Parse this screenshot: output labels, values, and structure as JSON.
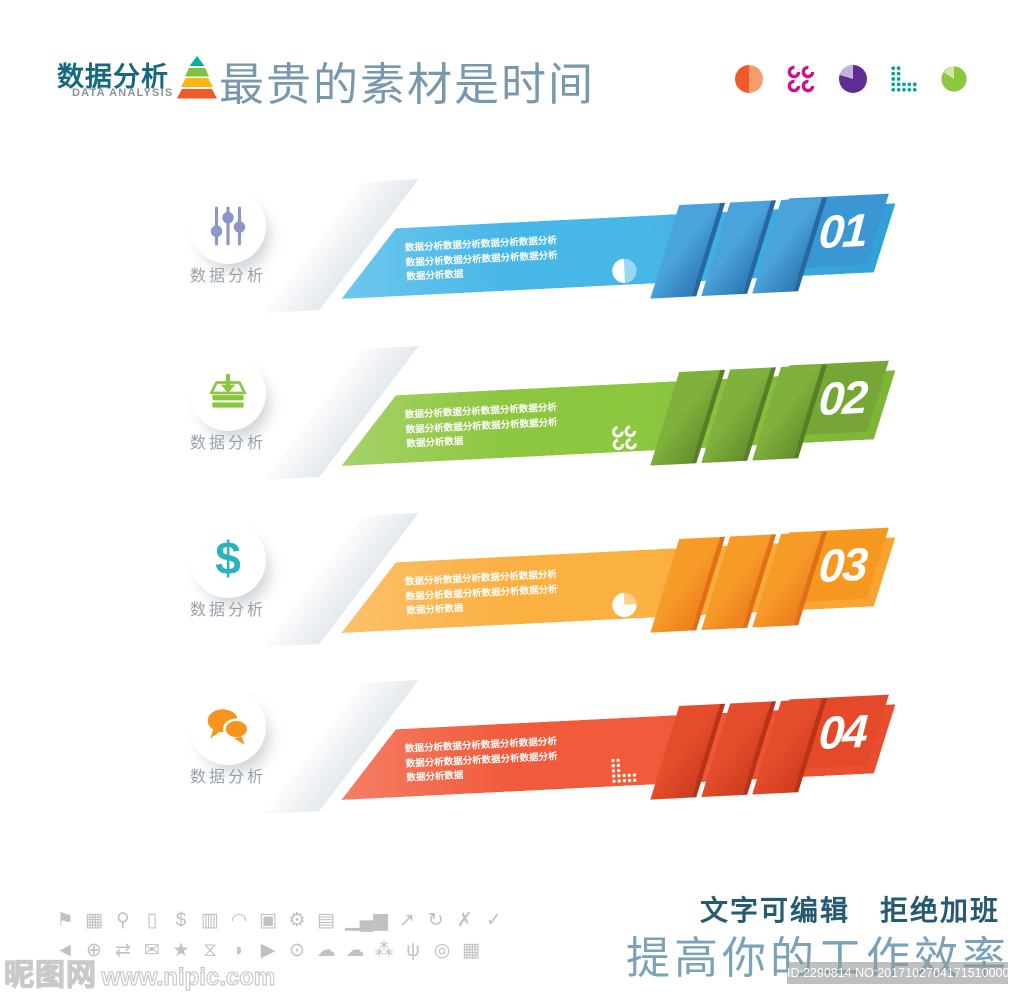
{
  "header": {
    "logo_cn": "数据分析",
    "logo_en": "DATA ANALYSIS",
    "title": "最贵的素材是时间",
    "pyramid_colors": [
      "#00b0a0",
      "#7fc241",
      "#fdb515",
      "#f05a28"
    ],
    "mini_charts": [
      {
        "name": "half-pie-orange",
        "c1": "#f05a28",
        "c2": "#f59c6b"
      },
      {
        "name": "rings-magenta",
        "c1": "#c6168d",
        "c2": "#c6168d"
      },
      {
        "name": "pie-purple",
        "c1": "#5f2d91",
        "c2": "#c4b3d8"
      },
      {
        "name": "dot-grid-teal",
        "c1": "#00a398",
        "c2": "#00a398"
      },
      {
        "name": "pie-green",
        "c1": "#8dc63f",
        "c2": "#d3e6a4"
      }
    ]
  },
  "rows": [
    {
      "number": "01",
      "circle_label": "数据分析",
      "icon": "sliders-icon",
      "mini_icon": "half-pie-icon",
      "text_line1": "数据分析数据分析数据分析数据分析",
      "text_line2": "数据分析数据分析数据分析数据分析",
      "text_line3": "数据分析数据",
      "colors": {
        "band": "#47b7e8",
        "band_dark": "#2f9fd8",
        "ribbon": "#4aa3da",
        "ribbon_dark": "#2d78b4",
        "ribbon_edge": "#26699f",
        "box": "#3b97d3",
        "acc": "#8b96c9"
      }
    },
    {
      "number": "02",
      "circle_label": "数据分析",
      "icon": "archive-download-icon",
      "mini_icon": "rings-icon",
      "text_line1": "数据分析数据分析数据分析数据分析",
      "text_line2": "数据分析数据分析数据分析数据分析",
      "text_line3": "数据分析数据",
      "colors": {
        "band": "#8dc63f",
        "band_dark": "#7db338",
        "ribbon": "#7fb13c",
        "ribbon_dark": "#648f2d",
        "ribbon_edge": "#587f27",
        "box": "#76a635",
        "acc": "#8cc63f"
      }
    },
    {
      "number": "03",
      "circle_label": "数据分析",
      "icon": "dollar-icon",
      "mini_icon": "pie-quarter-icon",
      "text_line1": "数据分析数据分析数据分析数据分析",
      "text_line2": "数据分析数据分析数据分析数据分析",
      "text_line3": "数据分析数据",
      "colors": {
        "band": "#fbb042",
        "band_dark": "#f9a22f",
        "ribbon": "#f79b28",
        "ribbon_dark": "#ee7d1e",
        "ribbon_edge": "#e06f15",
        "box": "#f79820",
        "acc": "#2ab3bc"
      }
    },
    {
      "number": "04",
      "circle_label": "数据分析",
      "icon": "chat-bubbles-icon",
      "mini_icon": "dot-grid-icon",
      "text_line1": "数据分析数据分析数据分析数据分析",
      "text_line2": "数据分析数据分析数据分析数据分析",
      "text_line3": "数据分析数据",
      "colors": {
        "band": "#f15b3b",
        "band_dark": "#e84c2c",
        "ribbon": "#e54c2b",
        "ribbon_dark": "#cc3d1f",
        "ribbon_edge": "#b93317",
        "box": "#e44a2a",
        "acc": "#f7941e"
      }
    }
  ],
  "footer": {
    "note": "文字可编辑　拒绝加班",
    "slogan": "提高你的工作效率",
    "site_cn": "昵图网",
    "site_url": "www.nipic.com",
    "id_text": "ID:2290814 NO:20171027041715100000",
    "icon_row1": [
      {
        "name": "flag-icon",
        "glyph": "⚑"
      },
      {
        "name": "calendar-icon",
        "glyph": "▦"
      },
      {
        "name": "search-icon",
        "glyph": "⚲"
      },
      {
        "name": "phone-icon",
        "glyph": "▯"
      },
      {
        "name": "dollar-icon",
        "glyph": "$"
      },
      {
        "name": "trash-icon",
        "glyph": "▥"
      },
      {
        "name": "wifi-icon",
        "glyph": "◠"
      },
      {
        "name": "lock-icon",
        "glyph": "▣"
      },
      {
        "name": "gears-icon",
        "glyph": "⚙"
      },
      {
        "name": "toolbox-icon",
        "glyph": "▤"
      },
      {
        "name": "bar-chart-icon",
        "glyph": "▁▄▆"
      },
      {
        "name": "trend-arrow-icon",
        "glyph": "↗"
      },
      {
        "name": "refresh-icon",
        "glyph": "↻"
      },
      {
        "name": "close-icon",
        "glyph": "✗"
      },
      {
        "name": "check-icon",
        "glyph": "✓"
      }
    ],
    "icon_row2": [
      {
        "name": "megaphone-icon",
        "glyph": "◄"
      },
      {
        "name": "globe-icon",
        "glyph": "⊕"
      },
      {
        "name": "swap-arrows-icon",
        "glyph": "⇄"
      },
      {
        "name": "mail-icon",
        "glyph": "✉"
      },
      {
        "name": "star-icon",
        "glyph": "★"
      },
      {
        "name": "hourglass-icon",
        "glyph": "⧖"
      },
      {
        "name": "chat-icon",
        "glyph": "◗"
      },
      {
        "name": "video-icon",
        "glyph": "▶"
      },
      {
        "name": "bulb-icon",
        "glyph": "⊙"
      },
      {
        "name": "cloud-upload-icon",
        "glyph": "☁"
      },
      {
        "name": "cloud-download-icon",
        "glyph": "☁"
      },
      {
        "name": "share-icon",
        "glyph": "⁂"
      },
      {
        "name": "hierarchy-icon",
        "glyph": "ψ"
      },
      {
        "name": "target-icon",
        "glyph": "◎"
      },
      {
        "name": "calendar-dollar-icon",
        "glyph": "▦"
      }
    ]
  }
}
